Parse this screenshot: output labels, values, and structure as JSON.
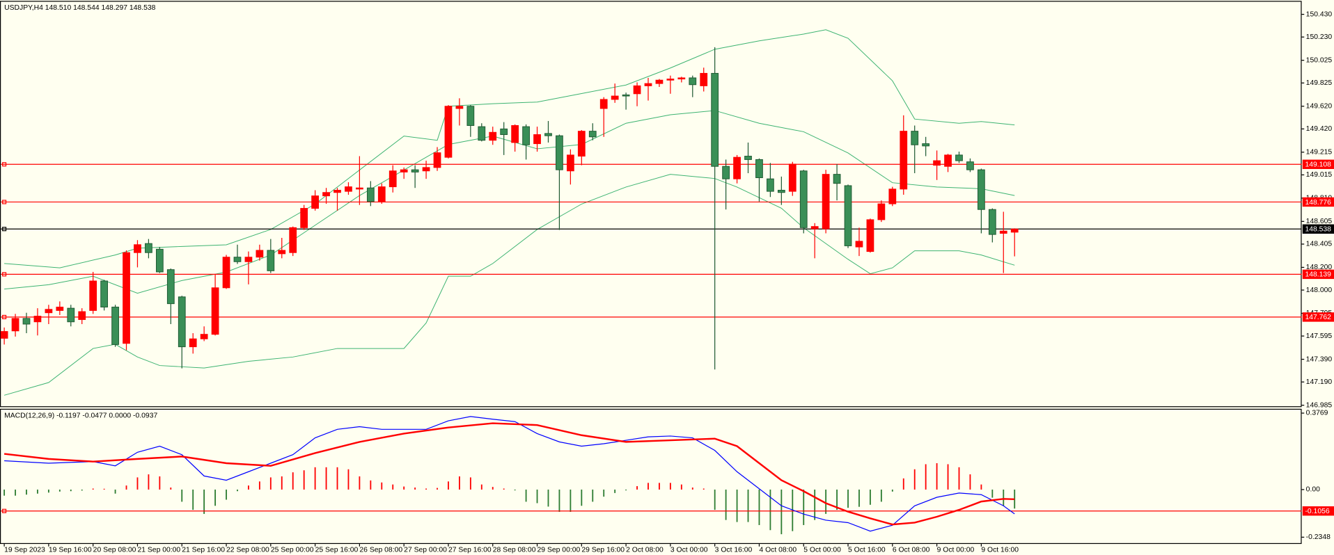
{
  "chart_data": [
    {
      "type": "candlestick",
      "title": "USDJPY,H4  148.510 148.544 148.297 148.538",
      "up_color": "#ff0000",
      "down_color": "#3a8f57",
      "down_border": "#1f5a33",
      "open": [
        147.575,
        147.64,
        147.75,
        147.72,
        147.8,
        147.82,
        147.84,
        147.74,
        147.82,
        148.08,
        147.85,
        147.53,
        148.33,
        148.41,
        148.36,
        148.18,
        147.94,
        147.5,
        147.57,
        147.61,
        148.02,
        148.29,
        148.25,
        148.29,
        148.35,
        148.32,
        148.33,
        148.55,
        148.72,
        148.83,
        148.86,
        148.87,
        148.89,
        148.9,
        148.78,
        148.91,
        149.04,
        149.06,
        149.05,
        149.08,
        149.17,
        149.6,
        149.62,
        149.44,
        149.32,
        149.42,
        149.3,
        149.44,
        149.29,
        149.38,
        149.36,
        149.05,
        149.18,
        149.4,
        149.6,
        149.68,
        149.72,
        149.73,
        149.8,
        149.82,
        149.85,
        149.86,
        149.87,
        149.8,
        149.91,
        149.09,
        148.98,
        149.18,
        149.15,
        148.98,
        148.88,
        148.87,
        149.05,
        148.54,
        148.54,
        149.02,
        148.92,
        148.38,
        148.34,
        148.62,
        148.76,
        148.89,
        149.4,
        149.29,
        149.1,
        149.09,
        149.19,
        149.13,
        149.06,
        148.71,
        148.5,
        148.51
      ],
      "high": [
        147.67,
        147.79,
        147.8,
        147.84,
        147.87,
        147.9,
        147.87,
        147.84,
        148.16,
        148.09,
        147.87,
        148.35,
        148.44,
        148.45,
        148.38,
        148.19,
        147.95,
        147.62,
        147.68,
        148.14,
        148.31,
        148.4,
        148.34,
        148.4,
        148.45,
        148.46,
        148.56,
        148.75,
        148.88,
        148.9,
        148.9,
        148.95,
        149.18,
        148.96,
        148.94,
        149.1,
        149.08,
        149.1,
        149.14,
        149.26,
        149.63,
        149.69,
        149.63,
        149.47,
        149.44,
        149.48,
        149.46,
        149.46,
        149.44,
        149.49,
        149.37,
        149.24,
        149.41,
        149.47,
        149.7,
        149.82,
        149.74,
        149.83,
        149.87,
        149.86,
        149.89,
        149.88,
        149.89,
        149.96,
        150.14,
        149.15,
        149.19,
        149.3,
        149.16,
        149.12,
        149.0,
        149.13,
        149.06,
        148.59,
        149.06,
        149.11,
        148.93,
        148.55,
        148.63,
        148.79,
        148.91,
        149.54,
        149.45,
        149.35,
        149.23,
        149.2,
        149.22,
        149.16,
        149.07,
        148.72,
        148.69,
        148.544
      ],
      "low": [
        147.52,
        147.59,
        147.62,
        147.6,
        147.7,
        147.78,
        147.68,
        147.7,
        147.79,
        147.82,
        147.5,
        147.47,
        148.2,
        148.28,
        148.15,
        147.7,
        147.31,
        147.44,
        147.55,
        147.6,
        148.01,
        148.23,
        148.05,
        148.26,
        148.15,
        148.28,
        148.3,
        148.53,
        148.7,
        148.76,
        148.7,
        148.84,
        148.75,
        148.74,
        148.76,
        148.86,
        148.98,
        148.9,
        148.98,
        149.05,
        149.16,
        149.45,
        149.35,
        149.31,
        149.28,
        149.19,
        149.22,
        149.15,
        149.22,
        149.3,
        148.53,
        148.93,
        149.1,
        149.32,
        149.35,
        149.65,
        149.59,
        149.62,
        149.67,
        149.79,
        149.73,
        149.83,
        149.7,
        149.75,
        147.3,
        148.71,
        148.94,
        149.03,
        148.78,
        148.82,
        148.75,
        148.83,
        148.5,
        148.28,
        148.5,
        148.79,
        148.37,
        148.3,
        148.33,
        148.6,
        148.74,
        148.84,
        149.03,
        149.18,
        148.97,
        149.04,
        149.12,
        149.04,
        148.5,
        148.42,
        148.15,
        148.297
      ],
      "close": [
        147.635,
        147.75,
        147.7,
        147.77,
        147.83,
        147.85,
        147.72,
        147.81,
        148.08,
        147.85,
        147.52,
        148.33,
        148.4,
        148.33,
        148.16,
        147.88,
        147.5,
        147.57,
        147.61,
        148.02,
        148.29,
        148.25,
        148.29,
        148.35,
        148.17,
        148.35,
        148.55,
        148.72,
        148.83,
        148.86,
        148.88,
        148.91,
        148.9,
        148.78,
        148.91,
        149.05,
        149.06,
        149.04,
        149.08,
        149.21,
        149.62,
        149.62,
        149.45,
        149.32,
        149.39,
        149.37,
        149.45,
        149.28,
        149.37,
        149.36,
        149.06,
        149.19,
        149.4,
        149.35,
        149.68,
        149.71,
        149.71,
        149.8,
        149.82,
        149.85,
        149.86,
        149.87,
        149.81,
        149.91,
        149.09,
        148.98,
        149.17,
        149.15,
        148.99,
        148.87,
        148.86,
        149.11,
        148.55,
        148.56,
        149.02,
        148.94,
        148.39,
        148.43,
        148.62,
        148.76,
        148.89,
        149.4,
        149.28,
        149.27,
        149.14,
        149.19,
        149.14,
        149.06,
        148.71,
        148.49,
        148.52,
        148.538
      ],
      "bands": {
        "color": "#3cb371",
        "lines": [
          {
            "x": [
              0,
              5,
              10,
              12,
              16,
              20,
              24,
              28,
              32,
              36,
              39,
              40,
              44,
              48,
              52,
              56,
              60,
              64,
              68,
              72,
              74,
              76,
              80,
              82,
              86,
              88,
              91
            ],
            "values": [
              148.234,
              148.196,
              148.309,
              148.369,
              148.384,
              148.399,
              148.534,
              148.758,
              149.058,
              149.357,
              149.32,
              149.62,
              149.642,
              149.657,
              149.732,
              149.807,
              149.957,
              150.122,
              150.196,
              150.256,
              150.294,
              150.219,
              149.844,
              149.507,
              149.47,
              149.485,
              149.455
            ]
          },
          {
            "x": [
              0,
              4,
              8,
              12,
              16,
              20,
              24,
              28,
              32,
              36,
              40,
              44,
              48,
              52,
              56,
              60,
              64,
              68,
              72,
              76,
              80,
              84,
              88,
              91
            ],
            "values": [
              148.009,
              148.047,
              148.122,
              147.972,
              148.084,
              148.159,
              148.309,
              148.571,
              148.833,
              149.058,
              149.283,
              149.357,
              149.245,
              149.283,
              149.47,
              149.545,
              149.582,
              149.47,
              149.395,
              149.208,
              148.946,
              148.908,
              148.893,
              148.833
            ]
          },
          {
            "x": [
              0,
              4,
              8,
              10,
              12,
              14,
              18,
              22,
              26,
              30,
              34,
              36,
              38,
              40,
              42,
              44,
              48,
              52,
              56,
              60,
              64,
              66,
              70,
              72,
              76,
              78,
              80,
              82,
              86,
              88,
              91
            ],
            "values": [
              147.073,
              147.185,
              147.485,
              147.522,
              147.41,
              147.335,
              147.313,
              147.372,
              147.41,
              147.485,
              147.485,
              147.485,
              147.71,
              148.122,
              148.122,
              148.234,
              148.534,
              148.758,
              148.908,
              149.02,
              148.983,
              148.908,
              148.721,
              148.549,
              148.271,
              148.144,
              148.196,
              148.346,
              148.346,
              148.309,
              148.219
            ]
          }
        ]
      },
      "hlines": [
        {
          "value": 149.108,
          "color": "#ff0000"
        },
        {
          "value": 148.776,
          "color": "#ff0000"
        },
        {
          "value": 148.538,
          "color": "#000000"
        },
        {
          "value": 148.139,
          "color": "#ff0000"
        },
        {
          "value": 147.762,
          "color": "#ff0000"
        }
      ],
      "ylim": [
        146.976,
        150.541
      ],
      "yticks": [
        {
          "value": 150.43,
          "label": "150.430"
        },
        {
          "value": 150.23,
          "label": "150.230"
        },
        150.025,
        149.825,
        {
          "value": 149.62,
          "label": "149.620"
        },
        {
          "value": 149.42,
          "label": "149.420"
        },
        149.215,
        149.015,
        {
          "value": 148.81,
          "label": "148.810"
        },
        148.605,
        148.405,
        {
          "value": 148.2,
          "label": "148.200"
        },
        {
          "value": 148,
          "label": "148.000"
        },
        147.795,
        147.595,
        {
          "value": 147.39,
          "label": "147.390"
        },
        {
          "value": 147.19,
          "label": "147.190"
        },
        146.985
      ],
      "xticks": [
        {
          "value": 0,
          "label": "19 Sep 2023"
        },
        {
          "value": 4,
          "label": "19 Sep 16:00"
        },
        {
          "value": 8,
          "label": "20 Sep 08:00"
        },
        {
          "value": 12,
          "label": "21 Sep 00:00"
        },
        {
          "value": 16,
          "label": "21 Sep 16:00"
        },
        {
          "value": 20,
          "label": "22 Sep 08:00"
        },
        {
          "value": 24,
          "label": "25 Sep 00:00"
        },
        {
          "value": 28,
          "label": "25 Sep 16:00"
        },
        {
          "value": 32,
          "label": "26 Sep 08:00"
        },
        {
          "value": 36,
          "label": "27 Sep 00:00"
        },
        {
          "value": 40,
          "label": "27 Sep 16:00"
        },
        {
          "value": 44,
          "label": "28 Sep 08:00"
        },
        {
          "value": 48,
          "label": "29 Sep 00:00"
        },
        {
          "value": 52,
          "label": "29 Sep 16:00"
        },
        {
          "value": 56,
          "label": "2 Oct 08:00"
        },
        {
          "value": 60,
          "label": "3 Oct 00:00"
        },
        {
          "value": 64,
          "label": "3 Oct 16:00"
        },
        {
          "value": 68,
          "label": "4 Oct 08:00"
        },
        {
          "value": 72,
          "label": "5 Oct 00:00"
        },
        {
          "value": 76,
          "label": "5 Oct 16:00"
        },
        {
          "value": 80,
          "label": "6 Oct 08:00"
        },
        {
          "value": 84,
          "label": "9 Oct 00:00"
        },
        {
          "value": 88,
          "label": "9 Oct 16:00"
        }
      ]
    },
    {
      "type": "macd",
      "title": "MACD(12,26,9) -0.1197 -0.0477 0.0000 -0.0937",
      "histogram": {
        "pos_color": "#ff0000",
        "neg_color": "#2e7d32",
        "values": [
          -0.03,
          -0.03,
          -0.025,
          -0.02,
          -0.015,
          -0.01,
          -0.008,
          -0.005,
          0.005,
          0.004,
          -0.02,
          0.02,
          0.06,
          0.075,
          0.065,
          0.01,
          -0.06,
          -0.1,
          -0.12,
          -0.08,
          -0.05,
          -0.008,
          0.02,
          0.04,
          0.06,
          0.065,
          0.085,
          0.095,
          0.11,
          0.11,
          0.11,
          0.1,
          0.065,
          0.045,
          0.035,
          0.025,
          0.015,
          0.01,
          0.005,
          0.008,
          0.04,
          0.065,
          0.06,
          0.025,
          0.013,
          0.005,
          -0.004,
          -0.06,
          -0.067,
          -0.084,
          -0.11,
          -0.11,
          -0.08,
          -0.06,
          -0.035,
          -0.017,
          -0.004,
          0.017,
          0.033,
          0.033,
          0.033,
          0.025,
          0.01,
          0.005,
          -0.1,
          -0.15,
          -0.16,
          -0.16,
          -0.175,
          -0.2,
          -0.22,
          -0.205,
          -0.175,
          -0.15,
          -0.12,
          -0.1,
          -0.09,
          -0.085,
          -0.075,
          -0.06,
          -0.01,
          0.055,
          0.1,
          0.125,
          0.13,
          0.125,
          0.11,
          0.075,
          0.025,
          -0.04,
          -0.08,
          -0.0937
        ]
      },
      "lines": [
        {
          "color": "#0000ff",
          "width": 1,
          "x": [
            0,
            4,
            8,
            10,
            12,
            14,
            16,
            18,
            20,
            22,
            24,
            26,
            28,
            30,
            32,
            34,
            36,
            38,
            40,
            42,
            44,
            46,
            48,
            50,
            52,
            54,
            56,
            58,
            60,
            62,
            64,
            66,
            68,
            70,
            72,
            74,
            76,
            78,
            80,
            82,
            84,
            86,
            88,
            90,
            91
          ],
          "values": [
            0.142,
            0.13,
            0.138,
            0.117,
            0.184,
            0.214,
            0.172,
            0.067,
            0.046,
            0.088,
            0.13,
            0.172,
            0.255,
            0.297,
            0.31,
            0.297,
            0.297,
            0.297,
            0.339,
            0.36,
            0.347,
            0.335,
            0.276,
            0.235,
            0.214,
            0.226,
            0.243,
            0.26,
            0.264,
            0.255,
            0.193,
            0.088,
            0.004,
            -0.08,
            -0.121,
            -0.151,
            -0.163,
            -0.205,
            -0.176,
            -0.08,
            -0.038,
            -0.017,
            -0.025,
            -0.08,
            -0.1197
          ]
        },
        {
          "color": "#ff0000",
          "width": 2,
          "x": [
            0,
            4,
            8,
            12,
            16,
            20,
            24,
            28,
            32,
            36,
            40,
            44,
            48,
            52,
            56,
            60,
            64,
            66,
            68,
            70,
            72,
            74,
            76,
            78,
            80,
            82,
            84,
            86,
            88,
            90,
            91
          ],
          "values": [
            0.176,
            0.151,
            0.138,
            0.151,
            0.163,
            0.13,
            0.117,
            0.18,
            0.235,
            0.276,
            0.306,
            0.327,
            0.318,
            0.268,
            0.235,
            0.243,
            0.251,
            0.214,
            0.13,
            0.046,
            -0.008,
            -0.067,
            -0.109,
            -0.142,
            -0.172,
            -0.163,
            -0.134,
            -0.1,
            -0.059,
            -0.046,
            -0.0477
          ]
        }
      ],
      "hlines": [
        {
          "value": -0.1056,
          "color": "#ff0000"
        }
      ],
      "ylim": [
        -0.268,
        0.394
      ],
      "yticks": [
        0.3769,
        {
          "value": 0,
          "label": "0.00"
        },
        -0.2348
      ]
    }
  ]
}
